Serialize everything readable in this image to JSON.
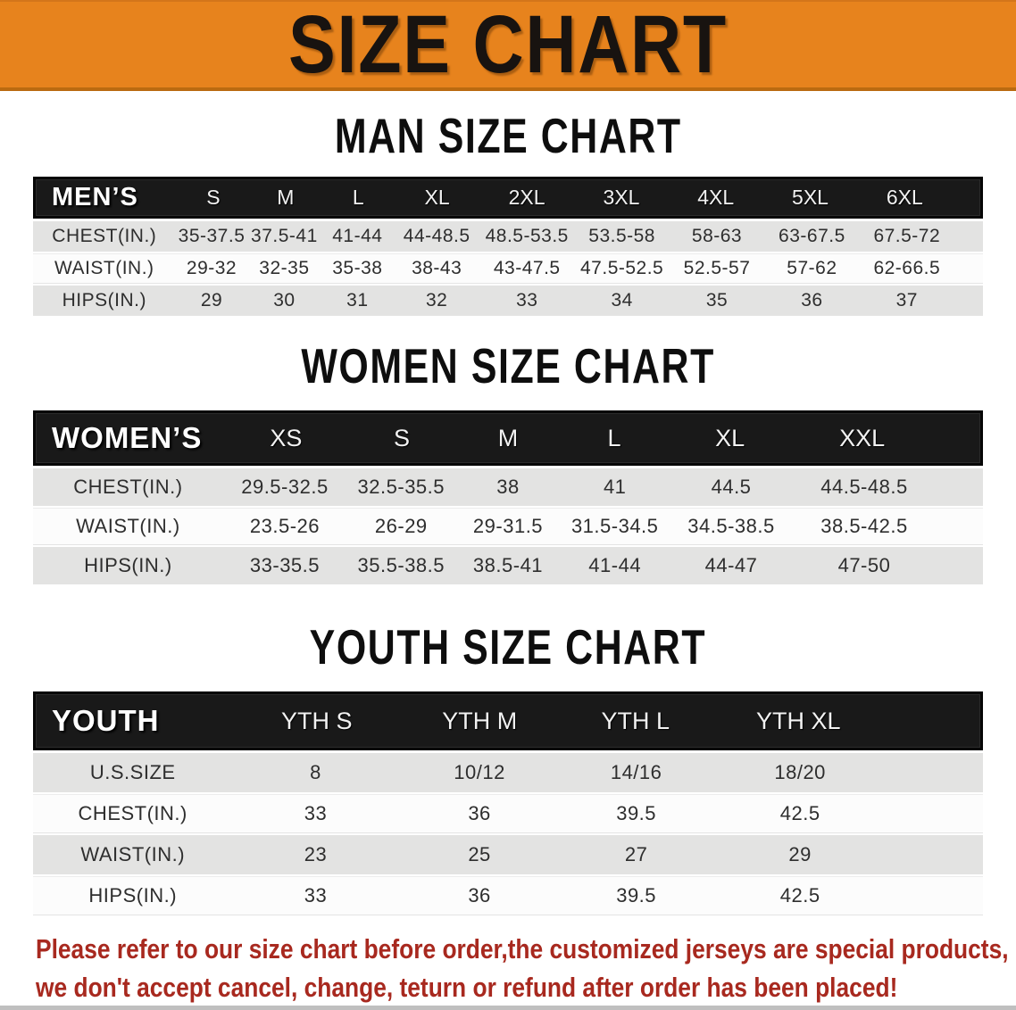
{
  "banner": {
    "title": "SIZE CHART"
  },
  "sections": {
    "men": {
      "title": "MAN SIZE CHART",
      "header_label": "MEN’S",
      "sizes": [
        "S",
        "M",
        "L",
        "XL",
        "2XL",
        "3XL",
        "4XL",
        "5XL",
        "6XL"
      ],
      "rows": [
        {
          "label": "CHEST(IN.)",
          "values": [
            "35-37.5",
            "37.5-41",
            "41-44",
            "44-48.5",
            "48.5-53.5",
            "53.5-58",
            "58-63",
            "63-67.5",
            "67.5-72"
          ]
        },
        {
          "label": "WAIST(IN.)",
          "values": [
            "29-32",
            "32-35",
            "35-38",
            "38-43",
            "43-47.5",
            "47.5-52.5",
            "52.5-57",
            "57-62",
            "62-66.5"
          ]
        },
        {
          "label": "HIPS(IN.)",
          "values": [
            "29",
            "30",
            "31",
            "32",
            "33",
            "34",
            "35",
            "36",
            "37"
          ]
        }
      ]
    },
    "women": {
      "title": "WOMEN SIZE CHART",
      "header_label": "WOMEN’S",
      "sizes": [
        "XS",
        "S",
        "M",
        "L",
        "XL",
        "XXL"
      ],
      "rows": [
        {
          "label": "CHEST(IN.)",
          "values": [
            "29.5-32.5",
            "32.5-35.5",
            "38",
            "41",
            "44.5",
            "44.5-48.5"
          ]
        },
        {
          "label": "WAIST(IN.)",
          "values": [
            "23.5-26",
            "26-29",
            "29-31.5",
            "31.5-34.5",
            "34.5-38.5",
            "38.5-42.5"
          ]
        },
        {
          "label": "HIPS(IN.)",
          "values": [
            "33-35.5",
            "35.5-38.5",
            "38.5-41",
            "41-44",
            "44-47",
            "47-50"
          ]
        }
      ]
    },
    "youth": {
      "title": "YOUTH SIZE CHART",
      "header_label": "YOUTH",
      "sizes": [
        "YTH S",
        "YTH M",
        "YTH L",
        "YTH XL"
      ],
      "rows": [
        {
          "label": "U.S.SIZE",
          "values": [
            "8",
            "10/12",
            "14/16",
            "18/20"
          ]
        },
        {
          "label": "CHEST(IN.)",
          "values": [
            "33",
            "36",
            "39.5",
            "42.5"
          ]
        },
        {
          "label": "WAIST(IN.)",
          "values": [
            "23",
            "25",
            "27",
            "29"
          ]
        },
        {
          "label": "HIPS(IN.)",
          "values": [
            "33",
            "36",
            "39.5",
            "42.5"
          ]
        }
      ]
    }
  },
  "disclaimer": {
    "line1": "Please refer to our size chart before order,the customized jerseys are special products,",
    "line2": "we don't accept cancel, change, teturn or refund after order has been placed!"
  },
  "colors": {
    "banner_bg": "#E7831D",
    "banner_border": "#BA6A10",
    "table_header_bg": "#191919",
    "row_gray": "#E3E3E2",
    "row_white": "#FCFCFC",
    "disclaimer_red": "#A8291F"
  }
}
